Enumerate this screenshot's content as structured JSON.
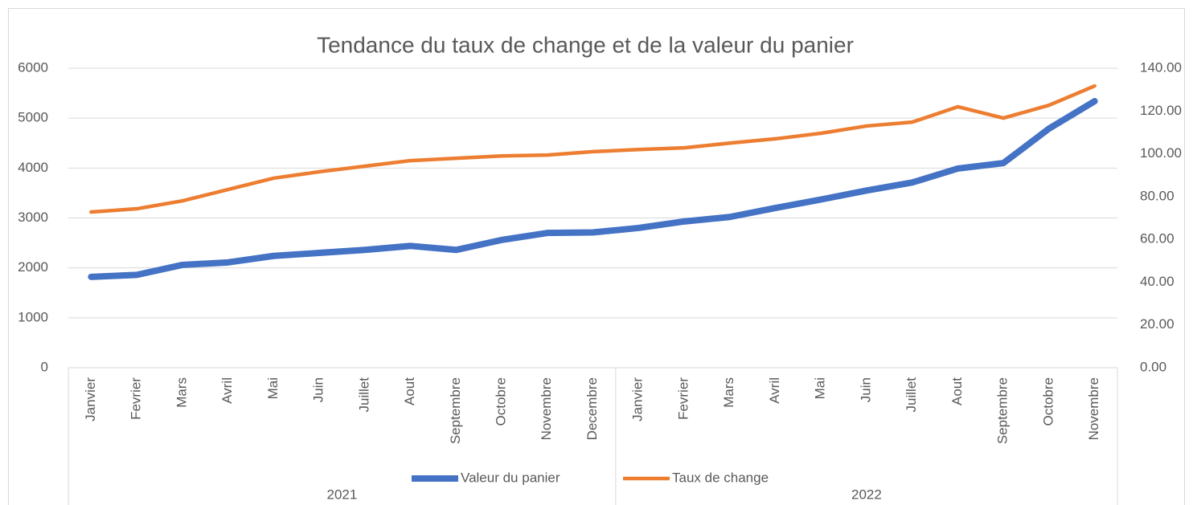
{
  "chart_data": {
    "type": "line",
    "title": "Tendance du taux de change et de la valeur du panier",
    "category_groups": [
      {
        "name": "2021",
        "categories": [
          "Janvier",
          "Fevrier",
          "Mars",
          "Avril",
          "Mai",
          "Juin",
          "Juillet",
          "Aout",
          "Septembre",
          "Octobre",
          "Novembre",
          "Decembre"
        ]
      },
      {
        "name": "2022",
        "categories": [
          "Janvier",
          "Fevrier",
          "Mars",
          "Avril",
          "Mai",
          "Juin",
          "Juillet",
          "Aout",
          "Septembre",
          "Octobre",
          "Novembre"
        ]
      }
    ],
    "series": [
      {
        "name": "Valeur du panier",
        "color": "#4472c4",
        "axis": "y",
        "values": [
          1820,
          1860,
          2060,
          2110,
          2240,
          2300,
          2360,
          2440,
          2360,
          2560,
          2700,
          2710,
          2800,
          2930,
          3020,
          3200,
          3370,
          3550,
          3710,
          3990,
          4100,
          4790,
          5340
        ]
      },
      {
        "name": "Taux de change",
        "color": "#ed7d31",
        "axis": "y2",
        "values": [
          72.8,
          74.3,
          78,
          83.3,
          88.6,
          91.6,
          94.2,
          96.8,
          97.9,
          99,
          99.4,
          101,
          102,
          102.8,
          105,
          107,
          109.6,
          113,
          114.8,
          122,
          116.7,
          122.7,
          131.7
        ]
      }
    ],
    "ylim": [
      0,
      6000
    ],
    "yticks": [
      0,
      1000,
      2000,
      3000,
      4000,
      5000,
      6000
    ],
    "y2lim": [
      0,
      140
    ],
    "y2ticks": [
      {
        "value": 0,
        "label": "0.00"
      },
      {
        "value": 20,
        "label": "20.00"
      },
      {
        "value": 40,
        "label": "40.00"
      },
      {
        "value": 60,
        "label": "60.00"
      },
      {
        "value": 80,
        "label": "80.00"
      },
      {
        "value": 100,
        "label": "100.00"
      },
      {
        "value": 120,
        "label": "120.00"
      },
      {
        "value": 140,
        "label": "140.00"
      }
    ],
    "grid": true,
    "legend": "bottom"
  }
}
